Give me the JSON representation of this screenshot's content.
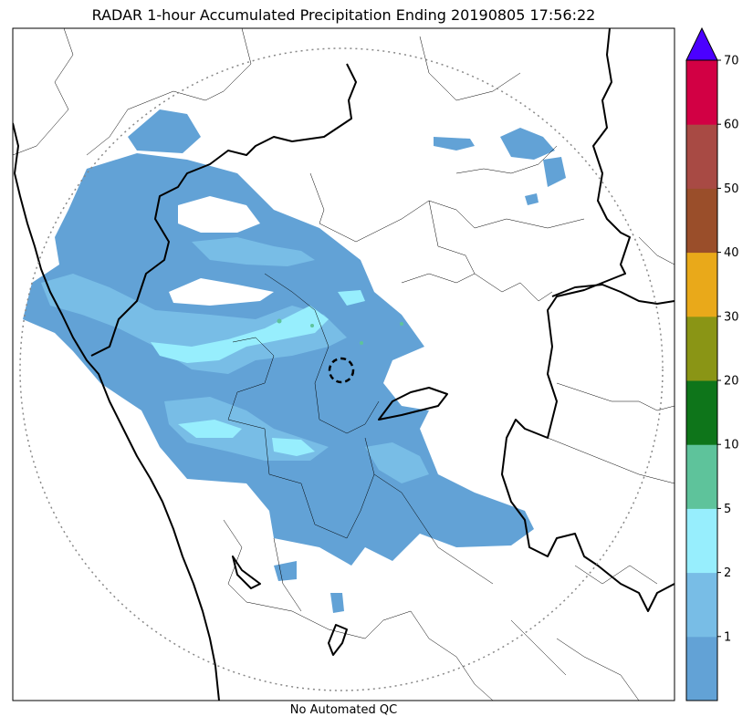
{
  "title": "RADAR 1-hour Accumulated Precipitation Ending 20190805 17:56:22",
  "footer": "No Automated QC",
  "colorbar": {
    "bins": [
      {
        "color": "#62a2d6",
        "label": "1"
      },
      {
        "color": "#78bde6",
        "label": "2"
      },
      {
        "color": "#97eefd",
        "label": "5"
      },
      {
        "color": "#5ec39b",
        "label": "10"
      },
      {
        "color": "#0e751a",
        "label": "20"
      },
      {
        "color": "#8a9515",
        "label": "30"
      },
      {
        "color": "#e9a91a",
        "label": "40"
      },
      {
        "color": "#9a4e2a",
        "label": "50"
      },
      {
        "color": "#a84a44",
        "label": "60"
      },
      {
        "color": "#d20044",
        "label": "70"
      }
    ],
    "extend_color": "#4b00ff"
  },
  "colors": {
    "rain_light": "#62a2d6",
    "rain_medium": "#78bde6",
    "rain_heavy": "#97eefd",
    "rain_green": "#5ec39b",
    "boundary": "#000000",
    "range_ring": "#888888"
  }
}
